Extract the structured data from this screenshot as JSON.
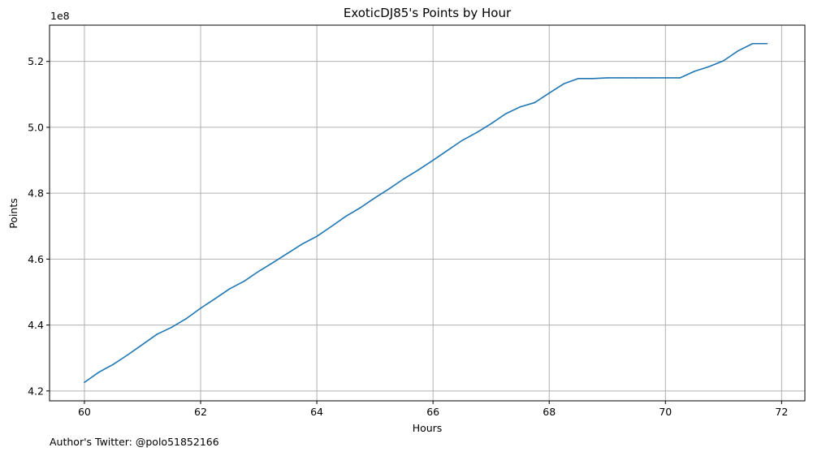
{
  "chart_data": {
    "type": "line",
    "title": "ExoticDJ85's Points by Hour",
    "xlabel": "Hours",
    "ylabel": "Points",
    "y_offset_label": "1e8",
    "xlim": [
      59.4,
      72.4
    ],
    "ylim": [
      417000000.0,
      531000000.0
    ],
    "x_ticks": [
      60,
      62,
      64,
      66,
      68,
      70,
      72
    ],
    "y_ticks": [
      4.2,
      4.4,
      4.6,
      4.8,
      5.0,
      5.2
    ],
    "y_tick_scale": 100000000,
    "grid": true,
    "line_color": "#1f77b4",
    "grid_color": "#b0b0b0",
    "series": [
      {
        "x": [
          60,
          60.25,
          60.5,
          60.75,
          61,
          61.25,
          61.5,
          61.75,
          62,
          62.25,
          62.5,
          62.75,
          63,
          63.25,
          63.5,
          63.75,
          64,
          64.25,
          64.5,
          64.75,
          65,
          65.25,
          65.5,
          65.75,
          66,
          66.25,
          66.5,
          66.75,
          67,
          67.25,
          67.5,
          67.75,
          68,
          68.25,
          68.5,
          68.75,
          69,
          69.25,
          69.5,
          69.75,
          70,
          70.25,
          70.5,
          70.75,
          71,
          71.25,
          71.5,
          71.75
        ],
        "values": [
          422600000,
          425700000,
          428100000,
          431000000,
          434100000,
          437200000,
          439300000,
          441900000,
          445100000,
          448000000,
          451000000,
          453300000,
          456300000,
          459000000,
          461800000,
          464600000,
          466900000,
          469900000,
          473000000,
          475600000,
          478600000,
          481400000,
          484400000,
          487100000,
          490000000,
          493000000,
          496000000,
          498400000,
          501100000,
          504100000,
          506200000,
          507500000,
          510400000,
          513200000,
          514800000,
          514800000,
          515000000,
          515000000,
          515000000,
          515000000,
          515000000,
          515000000,
          517000000,
          518400000,
          520200000,
          523200000,
          525400000,
          525400000
        ]
      }
    ]
  },
  "footer_text": "Author's Twitter: @polo51852166"
}
